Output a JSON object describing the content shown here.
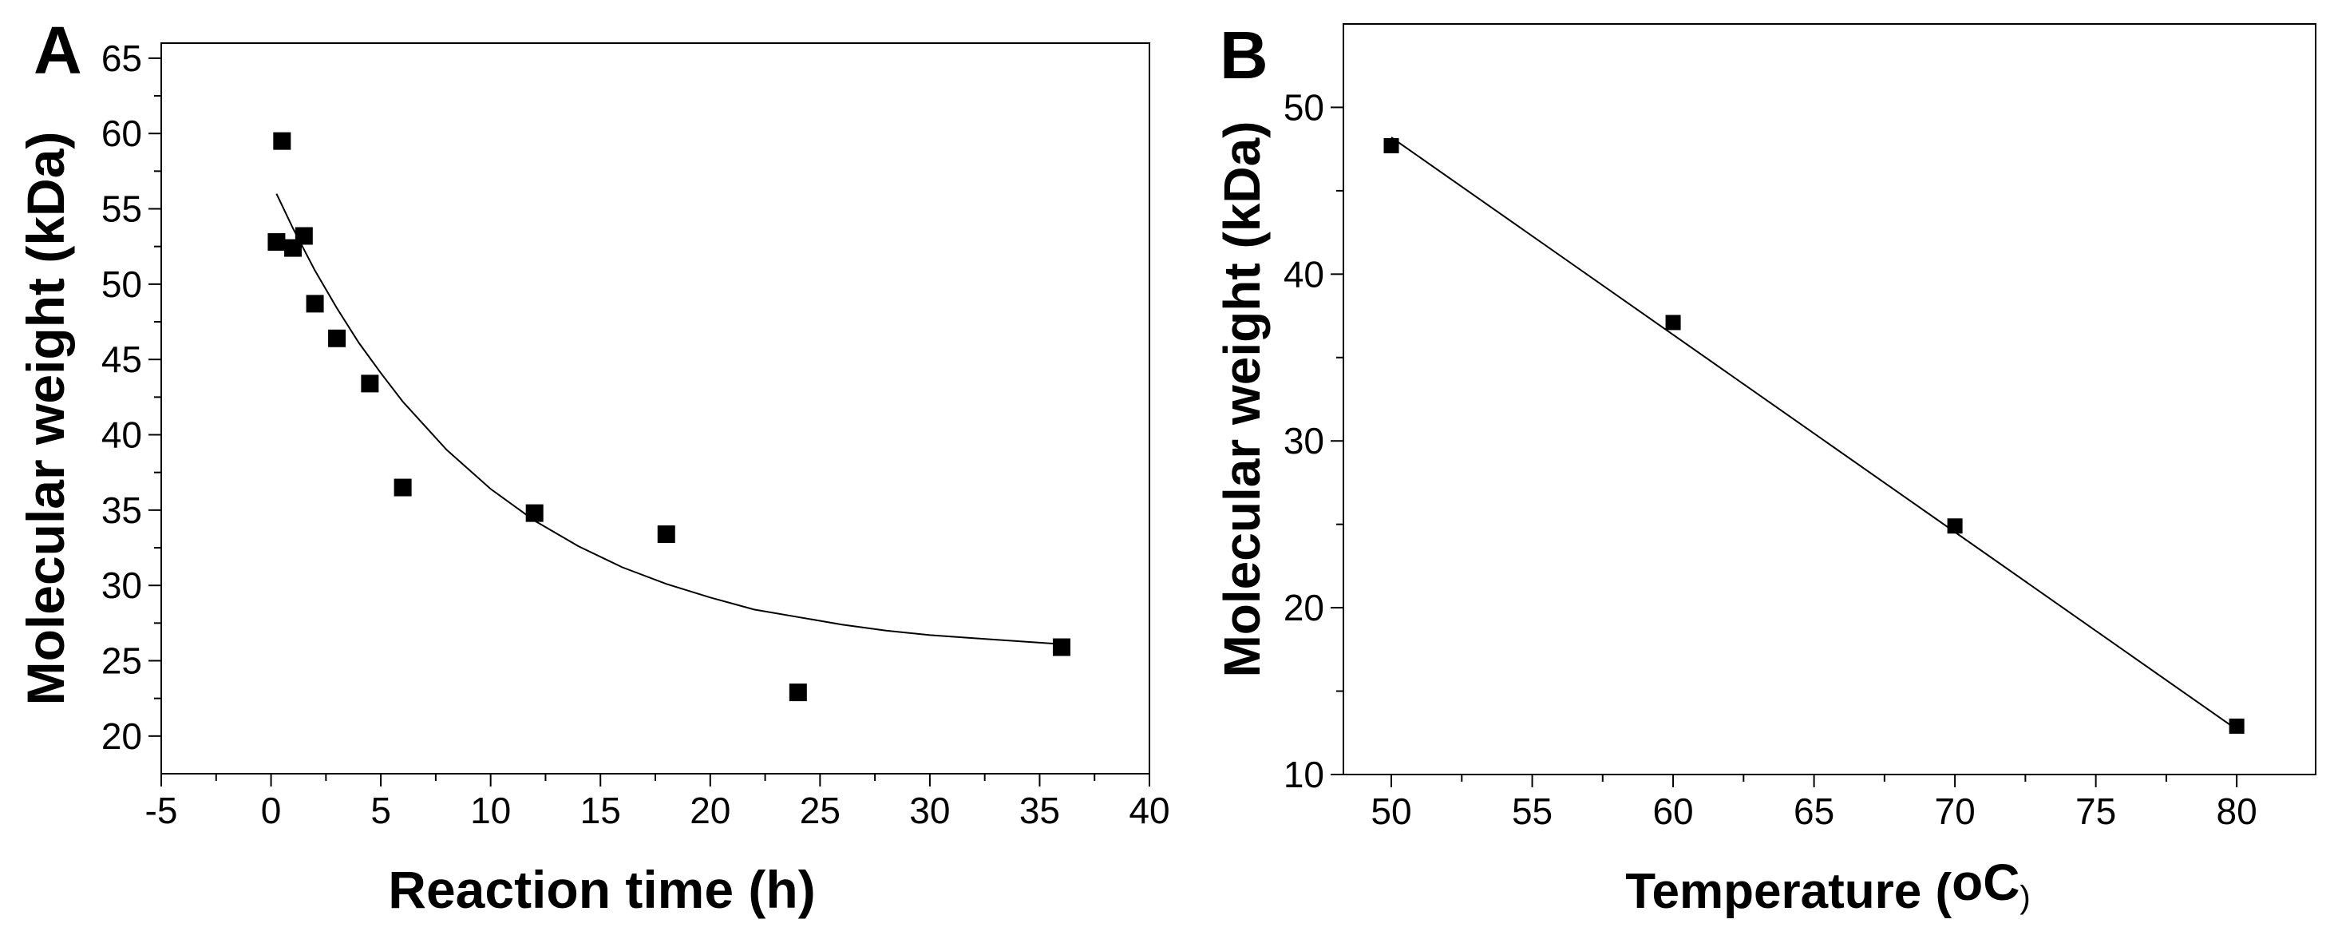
{
  "chart_data": [
    {
      "type": "scatter",
      "panel": "A",
      "xlabel": "Reaction time (h)",
      "ylabel": "Molecular weight (kDa)",
      "xlim": [
        -5,
        40
      ],
      "ylim": [
        17.5,
        66
      ],
      "xticks": [
        -5,
        0,
        5,
        10,
        15,
        20,
        25,
        30,
        35,
        40
      ],
      "yticks": [
        20,
        25,
        30,
        35,
        40,
        45,
        50,
        55,
        60,
        65
      ],
      "grid": false,
      "points": [
        {
          "x": 0.25,
          "y": 52.8
        },
        {
          "x": 0.5,
          "y": 59.5
        },
        {
          "x": 1,
          "y": 52.4
        },
        {
          "x": 1.5,
          "y": 53.2
        },
        {
          "x": 2,
          "y": 48.7
        },
        {
          "x": 3,
          "y": 46.4
        },
        {
          "x": 4.5,
          "y": 43.4
        },
        {
          "x": 6,
          "y": 36.5
        },
        {
          "x": 12,
          "y": 34.8
        },
        {
          "x": 18,
          "y": 33.4
        },
        {
          "x": 24,
          "y": 22.9
        },
        {
          "x": 36,
          "y": 25.9
        }
      ],
      "fit": {
        "type": "exponential-decay",
        "x": [
          0.25,
          1,
          2,
          3,
          4,
          5,
          6,
          8,
          10,
          12,
          14,
          16,
          18,
          20,
          22,
          24,
          26,
          28,
          30,
          32,
          34,
          36
        ],
        "y": [
          56.0,
          53.7,
          50.9,
          48.4,
          46.1,
          44.1,
          42.2,
          39.0,
          36.4,
          34.3,
          32.6,
          31.2,
          30.1,
          29.2,
          28.4,
          27.9,
          27.4,
          27.0,
          26.7,
          26.5,
          26.3,
          26.1
        ]
      }
    },
    {
      "type": "scatter",
      "panel": "B",
      "xlabel": "Temperature (",
      "xlabel_unit": "oC",
      "xlabel_close": ")",
      "ylabel": "Molecular weight (kDa)",
      "xlim": [
        48.3,
        82.8
      ],
      "ylim": [
        10,
        55
      ],
      "xticks": [
        50,
        55,
        60,
        65,
        70,
        75,
        80
      ],
      "yticks": [
        10,
        20,
        30,
        40,
        50
      ],
      "grid": false,
      "points": [
        {
          "x": 50,
          "y": 47.7
        },
        {
          "x": 60,
          "y": 37.1
        },
        {
          "x": 70,
          "y": 24.9
        },
        {
          "x": 80,
          "y": 12.9
        }
      ],
      "fit": {
        "type": "linear",
        "x": [
          50,
          80
        ],
        "y": [
          48.2,
          12.7
        ]
      }
    }
  ]
}
